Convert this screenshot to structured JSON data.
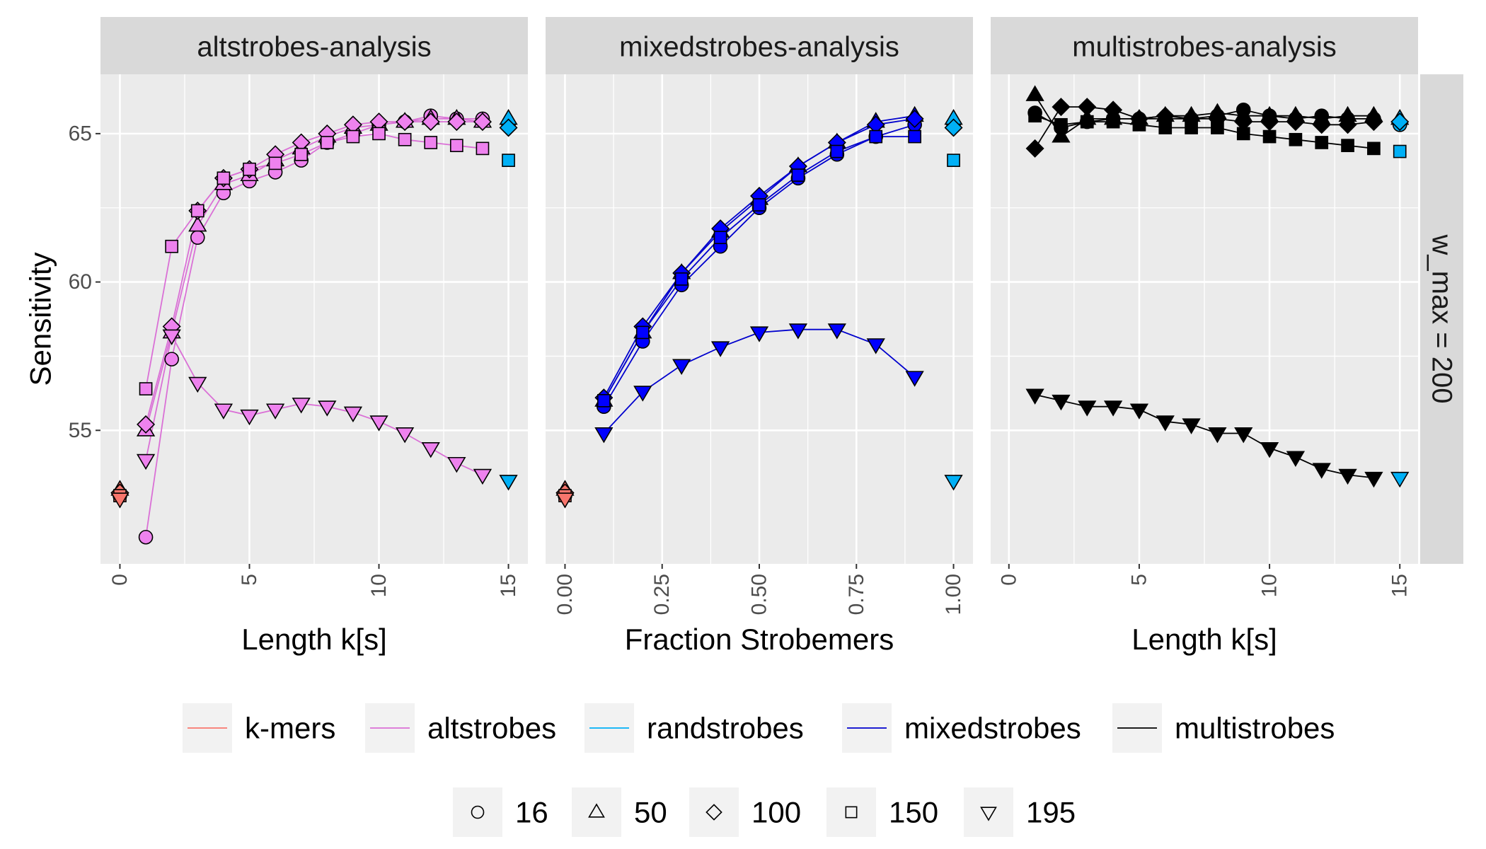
{
  "chart_data": {
    "type": "line",
    "facet_strip": "w_max = 200",
    "ylabel": "Sensitivity",
    "ylim": [
      50.5,
      67.0
    ],
    "yticks": [
      55,
      60,
      65
    ],
    "grid": true,
    "legend_placement": "bottom",
    "panels": [
      {
        "title": "altstrobes-analysis",
        "xlabel": "Length k[s]",
        "xlim": [
          -0.75,
          15.75
        ],
        "xticks": [
          0,
          5,
          10,
          15
        ],
        "xtick_labels": [
          "0",
          "5",
          "10",
          "15"
        ],
        "series": [
          {
            "method": "altstrobes",
            "group": "16",
            "x": [
              1,
              2,
              3,
              4,
              5,
              6,
              7,
              8,
              9,
              10,
              11,
              12,
              13,
              14
            ],
            "y": [
              51.4,
              57.4,
              61.5,
              63.0,
              63.4,
              63.7,
              64.1,
              64.7,
              65.0,
              65.3,
              65.4,
              65.6,
              65.5,
              65.5
            ]
          },
          {
            "method": "altstrobes",
            "group": "50",
            "x": [
              1,
              2,
              3,
              4,
              5,
              6,
              7,
              8,
              9,
              10,
              11,
              12,
              13,
              14
            ],
            "y": [
              55.0,
              58.3,
              61.9,
              63.3,
              63.6,
              64.1,
              64.5,
              64.9,
              65.2,
              65.3,
              65.4,
              65.5,
              65.5,
              65.4
            ]
          },
          {
            "method": "altstrobes",
            "group": "100",
            "x": [
              1,
              2,
              3,
              4,
              5,
              6,
              7,
              8,
              9,
              10,
              11,
              12,
              13,
              14
            ],
            "y": [
              55.2,
              58.5,
              62.4,
              63.5,
              63.8,
              64.3,
              64.7,
              65.0,
              65.3,
              65.4,
              65.4,
              65.4,
              65.4,
              65.4
            ]
          },
          {
            "method": "altstrobes",
            "group": "150",
            "x": [
              1,
              2,
              3,
              4,
              5,
              6,
              7,
              8,
              9,
              10,
              11,
              12,
              13,
              14
            ],
            "y": [
              56.4,
              61.2,
              62.4,
              63.5,
              63.8,
              64.0,
              64.3,
              64.7,
              64.9,
              65.0,
              64.8,
              64.7,
              64.6,
              64.5
            ]
          },
          {
            "method": "altstrobes",
            "group": "195",
            "x": [
              1,
              2,
              3,
              4,
              5,
              6,
              7,
              8,
              9,
              10,
              11,
              12,
              13,
              14
            ],
            "y": [
              54.0,
              58.2,
              56.6,
              55.7,
              55.5,
              55.7,
              55.9,
              55.8,
              55.6,
              55.3,
              54.9,
              54.4,
              53.9,
              53.5
            ]
          },
          {
            "method": "k-mers",
            "group": "16",
            "x": [
              0
            ],
            "y": [
              52.8
            ]
          },
          {
            "method": "k-mers",
            "group": "50",
            "x": [
              0
            ],
            "y": [
              53.0
            ]
          },
          {
            "method": "k-mers",
            "group": "100",
            "x": [
              0
            ],
            "y": [
              52.9
            ]
          },
          {
            "method": "k-mers",
            "group": "150",
            "x": [
              0
            ],
            "y": [
              52.8
            ]
          },
          {
            "method": "k-mers",
            "group": "195",
            "x": [
              0
            ],
            "y": [
              52.7
            ]
          },
          {
            "method": "randstrobes",
            "group": "16",
            "x": [
              15
            ],
            "y": [
              65.3
            ]
          },
          {
            "method": "randstrobes",
            "group": "50",
            "x": [
              15
            ],
            "y": [
              65.5
            ]
          },
          {
            "method": "randstrobes",
            "group": "100",
            "x": [
              15
            ],
            "y": [
              65.2
            ]
          },
          {
            "method": "randstrobes",
            "group": "150",
            "x": [
              15
            ],
            "y": [
              64.1
            ]
          },
          {
            "method": "randstrobes",
            "group": "195",
            "x": [
              15
            ],
            "y": [
              53.3
            ]
          }
        ]
      },
      {
        "title": "mixedstrobes-analysis",
        "xlabel": "Fraction Strobemers",
        "xlim": [
          -0.05,
          1.05
        ],
        "xticks": [
          0,
          0.25,
          0.5,
          0.75,
          1.0
        ],
        "xtick_labels": [
          "0.00",
          "0.25",
          "0.50",
          "0.75",
          "1.00"
        ],
        "series": [
          {
            "method": "mixedstrobes",
            "group": "16",
            "x": [
              0.1,
              0.2,
              0.3,
              0.4,
              0.5,
              0.6,
              0.7,
              0.8,
              0.9
            ],
            "y": [
              55.8,
              58.0,
              59.9,
              61.2,
              62.5,
              63.5,
              64.3,
              64.9,
              65.3
            ]
          },
          {
            "method": "mixedstrobes",
            "group": "50",
            "x": [
              0.1,
              0.2,
              0.3,
              0.4,
              0.5,
              0.6,
              0.7,
              0.8,
              0.9
            ],
            "y": [
              56.0,
              58.3,
              60.3,
              61.7,
              62.8,
              63.9,
              64.7,
              65.4,
              65.6
            ]
          },
          {
            "method": "mixedstrobes",
            "group": "100",
            "x": [
              0.1,
              0.2,
              0.3,
              0.4,
              0.5,
              0.6,
              0.7,
              0.8,
              0.9
            ],
            "y": [
              56.1,
              58.5,
              60.3,
              61.8,
              62.9,
              63.9,
              64.7,
              65.3,
              65.5
            ]
          },
          {
            "method": "mixedstrobes",
            "group": "150",
            "x": [
              0.1,
              0.2,
              0.3,
              0.4,
              0.5,
              0.6,
              0.7,
              0.8,
              0.9
            ],
            "y": [
              56.0,
              58.3,
              60.1,
              61.5,
              62.6,
              63.6,
              64.4,
              64.9,
              64.9
            ]
          },
          {
            "method": "mixedstrobes",
            "group": "195",
            "x": [
              0.1,
              0.2,
              0.3,
              0.4,
              0.5,
              0.6,
              0.7,
              0.8,
              0.9
            ],
            "y": [
              54.9,
              56.3,
              57.2,
              57.8,
              58.3,
              58.4,
              58.4,
              57.9,
              56.8
            ]
          },
          {
            "method": "k-mers",
            "group": "16",
            "x": [
              0
            ],
            "y": [
              52.8
            ]
          },
          {
            "method": "k-mers",
            "group": "50",
            "x": [
              0
            ],
            "y": [
              53.0
            ]
          },
          {
            "method": "k-mers",
            "group": "100",
            "x": [
              0
            ],
            "y": [
              52.9
            ]
          },
          {
            "method": "k-mers",
            "group": "150",
            "x": [
              0
            ],
            "y": [
              52.8
            ]
          },
          {
            "method": "k-mers",
            "group": "195",
            "x": [
              0
            ],
            "y": [
              52.7
            ]
          },
          {
            "method": "randstrobes",
            "group": "16",
            "x": [
              1.0
            ],
            "y": [
              65.3
            ]
          },
          {
            "method": "randstrobes",
            "group": "50",
            "x": [
              1.0
            ],
            "y": [
              65.5
            ]
          },
          {
            "method": "randstrobes",
            "group": "100",
            "x": [
              1.0
            ],
            "y": [
              65.2
            ]
          },
          {
            "method": "randstrobes",
            "group": "150",
            "x": [
              1.0
            ],
            "y": [
              64.1
            ]
          },
          {
            "method": "randstrobes",
            "group": "195",
            "x": [
              1.0
            ],
            "y": [
              53.3
            ]
          }
        ]
      },
      {
        "title": "multistrobes-analysis",
        "xlabel": "Length k[s]",
        "xlim": [
          -0.7,
          15.7
        ],
        "xticks": [
          0,
          5,
          10,
          15
        ],
        "xtick_labels": [
          "0",
          "5",
          "10",
          "15"
        ],
        "series": [
          {
            "method": "multistrobes",
            "group": "16",
            "x": [
              1,
              2,
              3,
              4,
              5,
              6,
              7,
              8,
              9,
              10,
              11,
              12,
              13,
              14
            ],
            "y": [
              65.7,
              65.2,
              65.4,
              65.5,
              65.5,
              65.5,
              65.5,
              65.6,
              65.8,
              65.6,
              65.5,
              65.6,
              65.5,
              65.5
            ]
          },
          {
            "method": "multistrobes",
            "group": "50",
            "x": [
              1,
              2,
              3,
              4,
              5,
              6,
              7,
              8,
              9,
              10,
              11,
              12,
              13,
              14
            ],
            "y": [
              66.3,
              64.9,
              65.5,
              65.5,
              65.5,
              65.6,
              65.6,
              65.7,
              65.6,
              65.6,
              65.6,
              65.5,
              65.6,
              65.6
            ]
          },
          {
            "method": "multistrobes",
            "group": "100",
            "x": [
              1,
              2,
              3,
              4,
              5,
              6,
              7,
              8,
              9,
              10,
              11,
              12,
              13,
              14
            ],
            "y": [
              64.5,
              65.9,
              65.9,
              65.8,
              65.5,
              65.6,
              65.5,
              65.5,
              65.4,
              65.4,
              65.4,
              65.3,
              65.3,
              65.4
            ]
          },
          {
            "method": "multistrobes",
            "group": "150",
            "x": [
              1,
              2,
              3,
              4,
              5,
              6,
              7,
              8,
              9,
              10,
              11,
              12,
              13,
              14
            ],
            "y": [
              65.6,
              65.3,
              65.4,
              65.4,
              65.3,
              65.2,
              65.2,
              65.2,
              65.0,
              64.9,
              64.8,
              64.7,
              64.6,
              64.5
            ]
          },
          {
            "method": "multistrobes",
            "group": "195",
            "x": [
              1,
              2,
              3,
              4,
              5,
              6,
              7,
              8,
              9,
              10,
              11,
              12,
              13,
              14
            ],
            "y": [
              56.2,
              56.0,
              55.8,
              55.8,
              55.7,
              55.3,
              55.2,
              54.9,
              54.9,
              54.4,
              54.1,
              53.7,
              53.5,
              53.4
            ]
          },
          {
            "method": "randstrobes",
            "group": "16",
            "x": [
              15
            ],
            "y": [
              65.3
            ]
          },
          {
            "method": "randstrobes",
            "group": "50",
            "x": [
              15
            ],
            "y": [
              65.5
            ]
          },
          {
            "method": "randstrobes",
            "group": "100",
            "x": [
              15
            ],
            "y": [
              65.4
            ]
          },
          {
            "method": "randstrobes",
            "group": "150",
            "x": [
              15
            ],
            "y": [
              64.4
            ]
          },
          {
            "method": "randstrobes",
            "group": "195",
            "x": [
              15
            ],
            "y": [
              53.4
            ]
          }
        ]
      }
    ],
    "methods": [
      {
        "name": "k-mers",
        "color": "#F8766D",
        "fill": "#F8766D",
        "line": "#F8766D"
      },
      {
        "name": "altstrobes",
        "color": "#EE82EE",
        "fill": "#EE82EE",
        "line": "#DA70D6"
      },
      {
        "name": "randstrobes",
        "color": "#00B0F6",
        "fill": "#00B0F6",
        "line": "#00B0F6"
      },
      {
        "name": "mixedstrobes",
        "color": "#0000FF",
        "fill": "#0000FF",
        "line": "#0000CD"
      },
      {
        "name": "multistrobes",
        "color": "#000000",
        "fill": "#000000",
        "line": "#000000"
      }
    ],
    "groups": [
      {
        "name": "16",
        "shape": "circle"
      },
      {
        "name": "50",
        "shape": "triangle-up"
      },
      {
        "name": "100",
        "shape": "diamond"
      },
      {
        "name": "150",
        "shape": "square"
      },
      {
        "name": "195",
        "shape": "triangle-down"
      }
    ]
  }
}
